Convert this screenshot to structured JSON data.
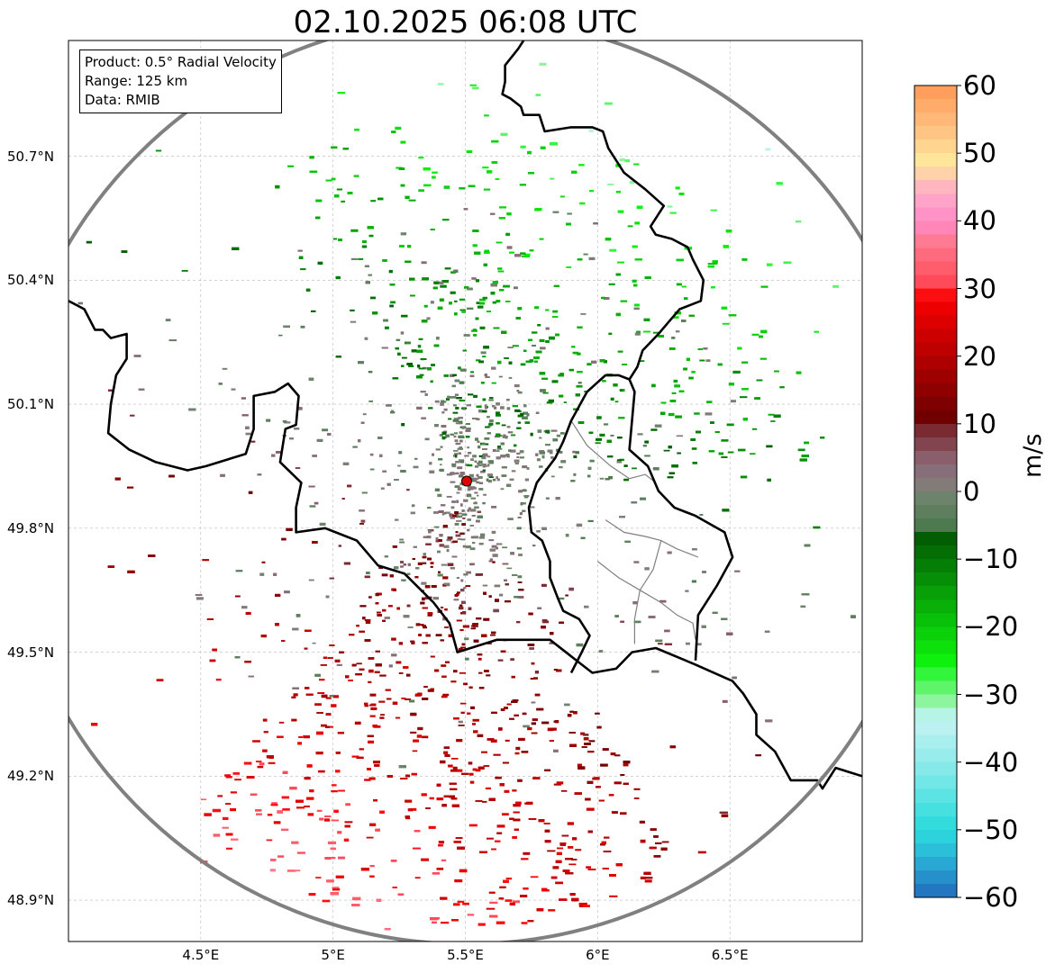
{
  "title": "02.10.2025 06:08 UTC",
  "info": {
    "product": "Product: 0.5° Radial Velocity",
    "range": "Range: 125 km",
    "data": "Data: RMIB"
  },
  "map": {
    "lon_range": [
      4.0,
      7.0
    ],
    "lat_range": [
      48.8,
      50.98
    ],
    "radar_center": {
      "lon": 5.505,
      "lat": 49.914
    },
    "range_ring_km": 125,
    "x_ticks": [
      {
        "value": 4.5,
        "label": "4.5°E"
      },
      {
        "value": 5.0,
        "label": "5°E"
      },
      {
        "value": 5.5,
        "label": "5.5°E"
      },
      {
        "value": 6.0,
        "label": "6°E"
      },
      {
        "value": 6.5,
        "label": "6.5°E"
      }
    ],
    "y_ticks": [
      {
        "value": 50.7,
        "label": "50.7°N"
      },
      {
        "value": 50.4,
        "label": "50.4°N"
      },
      {
        "value": 50.1,
        "label": "50.1°N"
      },
      {
        "value": 49.8,
        "label": "49.8°N"
      },
      {
        "value": 49.5,
        "label": "49.5°N"
      },
      {
        "value": 49.2,
        "label": "49.2°N"
      },
      {
        "value": 48.9,
        "label": "48.9°N"
      }
    ]
  },
  "colorbar": {
    "label": "m/s",
    "min": -60,
    "max": 60,
    "ticks": [
      {
        "value": 60,
        "label": "60"
      },
      {
        "value": 50,
        "label": "50"
      },
      {
        "value": 40,
        "label": "40"
      },
      {
        "value": 30,
        "label": "30"
      },
      {
        "value": 20,
        "label": "20"
      },
      {
        "value": 10,
        "label": "10"
      },
      {
        "value": 0,
        "label": "0"
      },
      {
        "value": -10,
        "label": "−10"
      },
      {
        "value": -20,
        "label": "−20"
      },
      {
        "value": -30,
        "label": "−30"
      },
      {
        "value": -40,
        "label": "−40"
      },
      {
        "value": -50,
        "label": "−50"
      },
      {
        "value": -60,
        "label": "−60"
      }
    ],
    "stops": [
      {
        "from": -60,
        "to": -58,
        "color": "#2377c1"
      },
      {
        "from": -58,
        "to": -56,
        "color": "#2590c9"
      },
      {
        "from": -56,
        "to": -54,
        "color": "#28a8d3"
      },
      {
        "from": -54,
        "to": -52,
        "color": "#2bbfd9"
      },
      {
        "from": -52,
        "to": -50,
        "color": "#2dd3dc"
      },
      {
        "from": -50,
        "to": -48,
        "color": "#33dcdc"
      },
      {
        "from": -48,
        "to": -46,
        "color": "#46e0e0"
      },
      {
        "from": -46,
        "to": -44,
        "color": "#5ce3e3"
      },
      {
        "from": -44,
        "to": -42,
        "color": "#72e7e7"
      },
      {
        "from": -42,
        "to": -40,
        "color": "#86e9e9"
      },
      {
        "from": -40,
        "to": -38,
        "color": "#98ecec"
      },
      {
        "from": -38,
        "to": -36,
        "color": "#aaeff0"
      },
      {
        "from": -36,
        "to": -34,
        "color": "#bcf1f1"
      },
      {
        "from": -34,
        "to": -32,
        "color": "#b6f4e6"
      },
      {
        "from": -32,
        "to": -30,
        "color": "#8ef59f"
      },
      {
        "from": -30,
        "to": -28,
        "color": "#5ef56b"
      },
      {
        "from": -28,
        "to": -26,
        "color": "#33f53c"
      },
      {
        "from": -26,
        "to": -24,
        "color": "#0ef00e"
      },
      {
        "from": -24,
        "to": -22,
        "color": "#0ce10c"
      },
      {
        "from": -22,
        "to": -20,
        "color": "#0ad10a"
      },
      {
        "from": -20,
        "to": -18,
        "color": "#09c109"
      },
      {
        "from": -18,
        "to": -16,
        "color": "#08b008"
      },
      {
        "from": -16,
        "to": -14,
        "color": "#07a007"
      },
      {
        "from": -14,
        "to": -12,
        "color": "#068f06"
      },
      {
        "from": -12,
        "to": -10,
        "color": "#057e05"
      },
      {
        "from": -10,
        "to": -8,
        "color": "#046d04"
      },
      {
        "from": -8,
        "to": -6,
        "color": "#035d03"
      },
      {
        "from": -6,
        "to": -4,
        "color": "#4d7a4f"
      },
      {
        "from": -4,
        "to": -2,
        "color": "#5d7f5e"
      },
      {
        "from": -2,
        "to": 0,
        "color": "#6e836c"
      },
      {
        "from": 0,
        "to": 2,
        "color": "#827b78"
      },
      {
        "from": 2,
        "to": 4,
        "color": "#866f78"
      },
      {
        "from": 4,
        "to": 6,
        "color": "#8a5f6b"
      },
      {
        "from": 6,
        "to": 8,
        "color": "#82454f"
      },
      {
        "from": 8,
        "to": 10,
        "color": "#7a2a31"
      },
      {
        "from": 10,
        "to": 12,
        "color": "#700000"
      },
      {
        "from": 12,
        "to": 14,
        "color": "#7f0000"
      },
      {
        "from": 14,
        "to": 16,
        "color": "#8f0000"
      },
      {
        "from": 16,
        "to": 18,
        "color": "#9e0000"
      },
      {
        "from": 18,
        "to": 20,
        "color": "#ae0000"
      },
      {
        "from": 20,
        "to": 22,
        "color": "#be0000"
      },
      {
        "from": 22,
        "to": 24,
        "color": "#cd0000"
      },
      {
        "from": 24,
        "to": 26,
        "color": "#dd0000"
      },
      {
        "from": 26,
        "to": 28,
        "color": "#ed0000"
      },
      {
        "from": 28,
        "to": 30,
        "color": "#fb0d10"
      },
      {
        "from": 30,
        "to": 32,
        "color": "#ff4a5a"
      },
      {
        "from": 32,
        "to": 34,
        "color": "#ff5c6c"
      },
      {
        "from": 34,
        "to": 36,
        "color": "#ff6b7e"
      },
      {
        "from": 36,
        "to": 38,
        "color": "#ff7b94"
      },
      {
        "from": 38,
        "to": 40,
        "color": "#ff86b6"
      },
      {
        "from": 40,
        "to": 42,
        "color": "#ff92c6"
      },
      {
        "from": 42,
        "to": 44,
        "color": "#ffa3c8"
      },
      {
        "from": 44,
        "to": 46,
        "color": "#ffb6bf"
      },
      {
        "from": 46,
        "to": 48,
        "color": "#ffd3a7"
      },
      {
        "from": 48,
        "to": 50,
        "color": "#ffe59a"
      },
      {
        "from": 50,
        "to": 52,
        "color": "#ffd590"
      },
      {
        "from": 52,
        "to": 54,
        "color": "#ffc584"
      },
      {
        "from": 54,
        "to": 56,
        "color": "#ffb877"
      },
      {
        "from": 56,
        "to": 58,
        "color": "#ffab6a"
      },
      {
        "from": 58,
        "to": 60,
        "color": "#ff9e5d"
      }
    ]
  },
  "borders": {
    "country": [
      [
        [
          4.0,
          50.35
        ],
        [
          4.06,
          50.33
        ],
        [
          4.1,
          50.28
        ],
        [
          4.13,
          50.28
        ],
        [
          4.16,
          50.26
        ],
        [
          4.22,
          50.27
        ],
        [
          4.22,
          50.21
        ],
        [
          4.18,
          50.17
        ],
        [
          4.16,
          50.1
        ],
        [
          4.15,
          50.03
        ],
        [
          4.23,
          49.99
        ],
        [
          4.33,
          49.96
        ],
        [
          4.45,
          49.94
        ],
        [
          4.52,
          49.95
        ],
        [
          4.67,
          49.98
        ],
        [
          4.7,
          50.04
        ],
        [
          4.7,
          50.12
        ],
        [
          4.78,
          50.13
        ],
        [
          4.83,
          50.15
        ],
        [
          4.87,
          50.12
        ],
        [
          4.86,
          50.05
        ],
        [
          4.82,
          50.04
        ],
        [
          4.8,
          49.96
        ],
        [
          4.88,
          49.91
        ],
        [
          4.86,
          49.85
        ],
        [
          4.86,
          49.79
        ],
        [
          4.97,
          49.8
        ],
        [
          5.09,
          49.77
        ],
        [
          5.17,
          49.71
        ],
        [
          5.27,
          49.69
        ],
        [
          5.38,
          49.62
        ],
        [
          5.44,
          49.57
        ],
        [
          5.47,
          49.5
        ],
        [
          5.62,
          49.53
        ],
        [
          5.72,
          49.53
        ],
        [
          5.82,
          49.53
        ],
        [
          5.9,
          49.49
        ],
        [
          5.98,
          49.45
        ],
        [
          6.07,
          49.46
        ],
        [
          6.13,
          49.5
        ],
        [
          6.22,
          49.51
        ],
        [
          6.37,
          49.47
        ],
        [
          6.51,
          49.43
        ],
        [
          6.55,
          49.4
        ],
        [
          6.6,
          49.35
        ],
        [
          6.6,
          49.3
        ],
        [
          6.67,
          49.26
        ],
        [
          6.73,
          49.19
        ],
        [
          6.83,
          49.19
        ],
        [
          6.85,
          49.17
        ],
        [
          6.9,
          49.22
        ],
        [
          6.95,
          49.21
        ],
        [
          7.0,
          49.2
        ]
      ],
      [
        [
          5.9,
          49.45
        ],
        [
          5.94,
          49.5
        ],
        [
          5.97,
          49.54
        ],
        [
          5.93,
          49.58
        ],
        [
          5.87,
          49.6
        ],
        [
          5.85,
          49.63
        ],
        [
          5.82,
          49.68
        ],
        [
          5.82,
          49.72
        ],
        [
          5.79,
          49.77
        ],
        [
          5.75,
          49.79
        ],
        [
          5.74,
          49.85
        ],
        [
          5.77,
          49.91
        ],
        [
          5.84,
          49.97
        ],
        [
          5.87,
          50.01
        ],
        [
          5.9,
          50.06
        ],
        [
          5.96,
          50.13
        ],
        [
          6.03,
          50.17
        ],
        [
          6.08,
          50.17
        ],
        [
          6.12,
          50.16
        ],
        [
          6.14,
          50.13
        ],
        [
          6.13,
          50.06
        ],
        [
          6.12,
          49.99
        ],
        [
          6.19,
          49.95
        ],
        [
          6.23,
          49.89
        ],
        [
          6.29,
          49.85
        ],
        [
          6.33,
          49.84
        ],
        [
          6.37,
          49.83
        ],
        [
          6.48,
          49.79
        ],
        [
          6.51,
          49.73
        ],
        [
          6.45,
          49.66
        ],
        [
          6.38,
          49.59
        ],
        [
          6.37,
          49.48
        ]
      ],
      [
        [
          6.12,
          50.16
        ],
        [
          6.15,
          50.19
        ],
        [
          6.17,
          50.23
        ],
        [
          6.23,
          50.27
        ],
        [
          6.27,
          50.3
        ],
        [
          6.31,
          50.33
        ],
        [
          6.39,
          50.35
        ],
        [
          6.4,
          50.4
        ],
        [
          6.36,
          50.45
        ],
        [
          6.34,
          50.48
        ],
        [
          6.28,
          50.5
        ],
        [
          6.22,
          50.51
        ],
        [
          6.2,
          50.53
        ],
        [
          6.25,
          50.58
        ],
        [
          6.18,
          50.62
        ],
        [
          6.1,
          50.66
        ],
        [
          6.04,
          50.72
        ],
        [
          6.02,
          50.76
        ],
        [
          5.98,
          50.77
        ],
        [
          5.9,
          50.77
        ],
        [
          5.8,
          50.76
        ],
        [
          5.78,
          50.8
        ],
        [
          5.72,
          50.8
        ],
        [
          5.71,
          50.82
        ],
        [
          5.67,
          50.84
        ],
        [
          5.64,
          50.85
        ],
        [
          5.65,
          50.88
        ],
        [
          5.65,
          50.92
        ],
        [
          5.7,
          50.96
        ],
        [
          5.72,
          50.98
        ]
      ]
    ],
    "regional": [
      [
        [
          5.9,
          50.06
        ],
        [
          5.96,
          50.0
        ],
        [
          6.05,
          49.95
        ],
        [
          6.12,
          49.92
        ],
        [
          6.18,
          49.93
        ],
        [
          6.22,
          49.91
        ]
      ],
      [
        [
          6.03,
          49.82
        ],
        [
          6.1,
          49.79
        ],
        [
          6.18,
          49.78
        ],
        [
          6.24,
          49.77
        ],
        [
          6.3,
          49.75
        ],
        [
          6.38,
          49.73
        ]
      ],
      [
        [
          6.0,
          49.72
        ],
        [
          6.08,
          49.68
        ],
        [
          6.16,
          49.65
        ],
        [
          6.24,
          49.62
        ],
        [
          6.3,
          49.59
        ],
        [
          6.36,
          49.57
        ],
        [
          6.37,
          49.53
        ]
      ],
      [
        [
          6.24,
          49.77
        ],
        [
          6.21,
          49.7
        ],
        [
          6.16,
          49.65
        ],
        [
          6.14,
          49.58
        ],
        [
          6.14,
          49.52
        ]
      ]
    ]
  }
}
